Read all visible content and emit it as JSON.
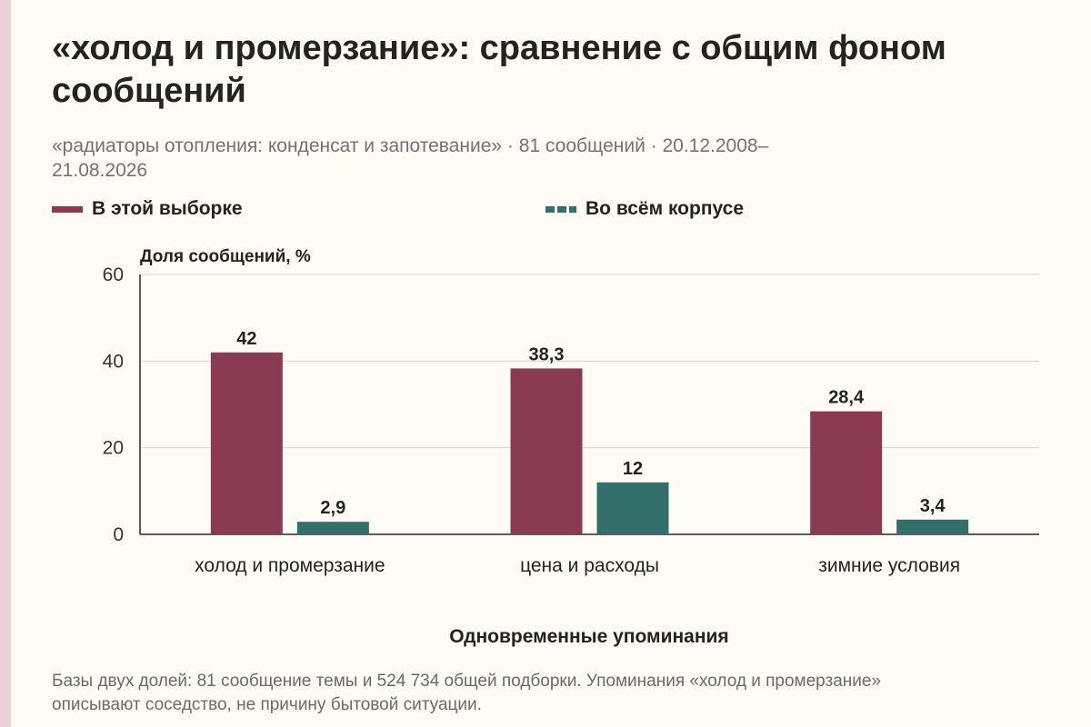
{
  "title": "«холод и промерзание»: сравнение с общим фоном сообщений",
  "subtitle": "«радиаторы отопления: конденсат и запотевание» · 81 сообщений · 20.12.2008–21.08.2026",
  "footnote": "Базы двух долей: 81 сообщение темы и 524 734 общей подборки. Упоминания «холод и промерзание» описывают соседство, не причину бытовой ситуации.",
  "colors": {
    "sample": "#8a3a52",
    "corpus": "#33706b"
  },
  "chart_data": {
    "type": "bar",
    "title": "«холод и промерзание»: сравнение с общим фоном сообщений",
    "xlabel": "Одновременные упоминания",
    "ylabel": "Доля сообщений, %",
    "ylim": [
      0,
      60
    ],
    "yticks": [
      "0",
      "20",
      "40",
      "60"
    ],
    "grid": true,
    "legend_position": "top",
    "categories": [
      "холод и промерзание",
      "цена и расходы",
      "зимние условия"
    ],
    "series": [
      {
        "name": "В этой выборке",
        "values": [
          42,
          38.3,
          28.4
        ],
        "labels": [
          "42",
          "38,3",
          "28,4"
        ]
      },
      {
        "name": "Во всём корпусе",
        "values": [
          2.9,
          12,
          3.4
        ],
        "labels": [
          "2,9",
          "12",
          "3,4"
        ]
      }
    ]
  }
}
